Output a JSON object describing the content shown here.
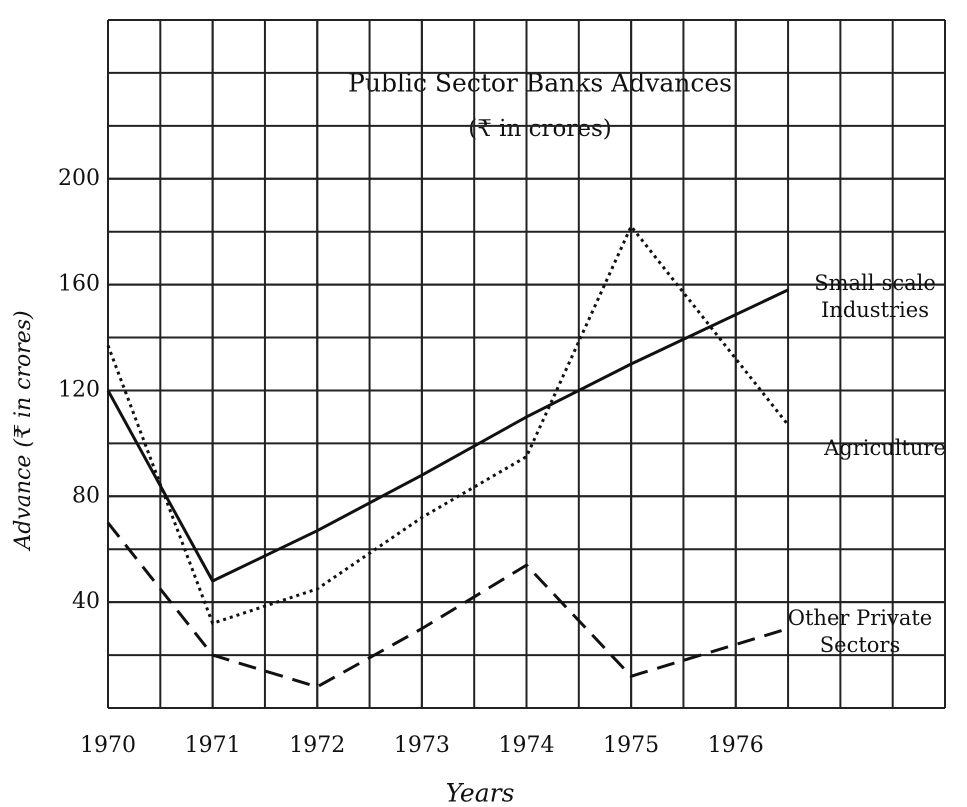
{
  "chart_data": {
    "type": "line",
    "title": "Public Sector Banks Advances",
    "subtitle": "(₹ in crores)",
    "y_label": "Advance (₹ in crores)",
    "x_label": "Years",
    "x": [
      1970,
      1971,
      1972,
      1973,
      1974,
      1975,
      1976.5
    ],
    "series": [
      {
        "name": "Small-scale Industries",
        "color": "#111111",
        "dash": "solid",
        "values": [
          120,
          48,
          67,
          88,
          110,
          130,
          158
        ]
      },
      {
        "name": "Agriculture",
        "color": "#111111",
        "dash": "dotted",
        "values": [
          137,
          32,
          45,
          72,
          95,
          182,
          107
        ]
      },
      {
        "name": "Other Private Sectors",
        "color": "#111111",
        "dash": "dashed",
        "values": [
          70,
          20,
          8,
          30,
          54,
          12,
          30
        ]
      }
    ],
    "xlim": [
      1970,
      1978
    ],
    "ylim": [
      0,
      260
    ],
    "xticks": [
      1970,
      1971,
      1972,
      1973,
      1974,
      1975,
      1976
    ],
    "yticks": [
      40,
      80,
      120,
      160,
      200
    ],
    "grid": true,
    "minor_grid": true
  }
}
